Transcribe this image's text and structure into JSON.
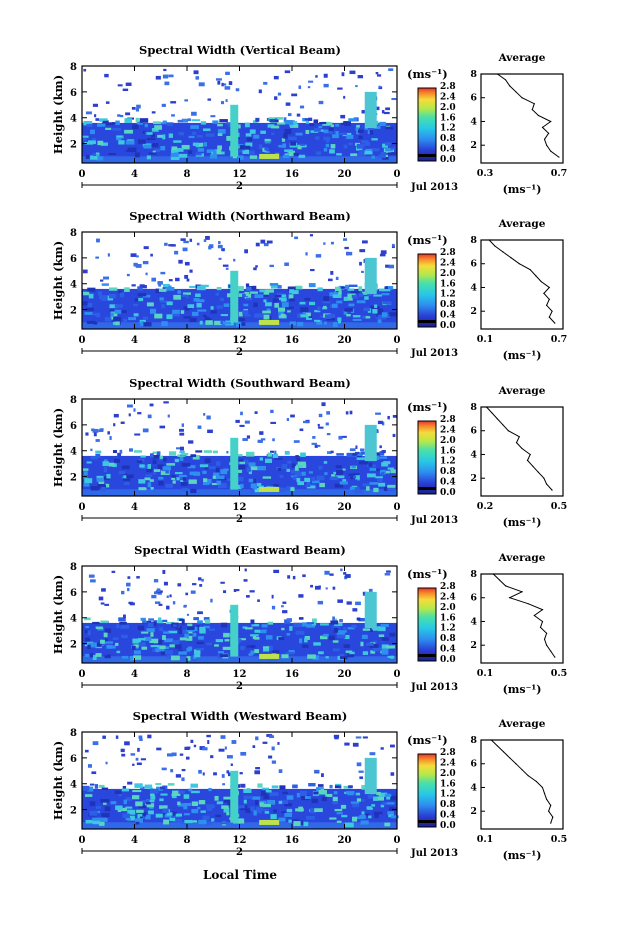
{
  "figure": {
    "xlabel": "Local Time",
    "x_ticks": [
      "0",
      "4",
      "8",
      "12",
      "16",
      "20",
      "0"
    ],
    "date_tick": "2",
    "date_label": "Jul 2013",
    "ylabel": "Height (km)",
    "y_ticks": [
      "2",
      "4",
      "6",
      "8"
    ],
    "colorbar_unit": "(ms⁻¹)",
    "colorbar_ticks": [
      "0.0",
      "0.4",
      "0.8",
      "1.2",
      "1.6",
      "2.0",
      "2.4",
      "2.8"
    ],
    "avg_title": "Average",
    "avg_xlabel": "(ms⁻¹)",
    "avg_y_ticks": [
      "2",
      "4",
      "6",
      "8"
    ]
  },
  "chart_data": [
    {
      "type": "heatmap",
      "title": "Spectral Width (Vertical Beam)",
      "xlim": [
        0,
        24
      ],
      "ylim": [
        0.5,
        8
      ],
      "colorbar_range": [
        0.0,
        2.8
      ],
      "average_profile": {
        "xlim": [
          0.3,
          0.7
        ],
        "x_tick_labels": [
          "0.3",
          "0.7"
        ],
        "height_km": [
          1.0,
          1.5,
          2.0,
          2.5,
          3.0,
          3.5,
          4.0,
          4.5,
          5.0,
          5.5,
          6.0,
          6.5,
          7.0,
          7.5,
          8.0
        ],
        "values": [
          0.68,
          0.64,
          0.62,
          0.61,
          0.63,
          0.6,
          0.64,
          0.58,
          0.55,
          0.56,
          0.5,
          0.47,
          0.44,
          0.42,
          0.38
        ]
      }
    },
    {
      "type": "heatmap",
      "title": "Spectral Width (Northward Beam)",
      "xlim": [
        0,
        24
      ],
      "ylim": [
        0.5,
        8
      ],
      "colorbar_range": [
        0.0,
        2.8
      ],
      "average_profile": {
        "xlim": [
          0.1,
          0.7
        ],
        "x_tick_labels": [
          "0.1",
          "0.7"
        ],
        "height_km": [
          1.0,
          1.5,
          2.0,
          2.5,
          3.0,
          3.5,
          4.0,
          4.5,
          5.0,
          5.5,
          6.0,
          6.5,
          7.0,
          7.5,
          8.0
        ],
        "values": [
          0.64,
          0.6,
          0.62,
          0.58,
          0.6,
          0.56,
          0.6,
          0.54,
          0.5,
          0.46,
          0.38,
          0.32,
          0.26,
          0.2,
          0.16
        ]
      }
    },
    {
      "type": "heatmap",
      "title": "Spectral Width (Southward Beam)",
      "xlim": [
        0,
        24
      ],
      "ylim": [
        0.5,
        8
      ],
      "colorbar_range": [
        0.0,
        2.8
      ],
      "average_profile": {
        "xlim": [
          0.2,
          0.5
        ],
        "x_tick_labels": [
          "0.2",
          "0.5"
        ],
        "height_km": [
          1.0,
          1.5,
          2.0,
          2.5,
          3.0,
          3.5,
          4.0,
          4.5,
          5.0,
          5.5,
          6.0,
          6.5,
          7.0,
          7.5,
          8.0
        ],
        "values": [
          0.46,
          0.44,
          0.43,
          0.41,
          0.39,
          0.37,
          0.38,
          0.35,
          0.33,
          0.34,
          0.3,
          0.28,
          0.26,
          0.24,
          0.22
        ]
      }
    },
    {
      "type": "heatmap",
      "title": "Spectral Width (Eastward Beam)",
      "xlim": [
        0,
        24
      ],
      "ylim": [
        0.5,
        8
      ],
      "colorbar_range": [
        0.0,
        2.8
      ],
      "average_profile": {
        "xlim": [
          0.1,
          0.5
        ],
        "x_tick_labels": [
          "0.1",
          "0.5"
        ],
        "height_km": [
          1.0,
          1.5,
          2.0,
          2.5,
          3.0,
          3.5,
          4.0,
          4.5,
          5.0,
          5.5,
          6.0,
          6.5,
          7.0,
          7.5,
          8.0
        ],
        "values": [
          0.46,
          0.44,
          0.42,
          0.41,
          0.42,
          0.39,
          0.4,
          0.36,
          0.4,
          0.33,
          0.24,
          0.3,
          0.22,
          0.19,
          0.16
        ]
      }
    },
    {
      "type": "heatmap",
      "title": "Spectral Width (Westward Beam)",
      "xlim": [
        0,
        24
      ],
      "ylim": [
        0.5,
        8
      ],
      "colorbar_range": [
        0.0,
        2.8
      ],
      "average_profile": {
        "xlim": [
          0.1,
          0.5
        ],
        "x_tick_labels": [
          "0.1",
          "0.5"
        ],
        "height_km": [
          1.0,
          1.5,
          2.0,
          2.5,
          3.0,
          3.5,
          4.0,
          4.5,
          5.0,
          5.5,
          6.0,
          6.5,
          7.0,
          7.5,
          8.0
        ],
        "values": [
          0.44,
          0.45,
          0.43,
          0.44,
          0.42,
          0.41,
          0.4,
          0.37,
          0.33,
          0.3,
          0.27,
          0.24,
          0.21,
          0.18,
          0.15
        ]
      }
    }
  ]
}
